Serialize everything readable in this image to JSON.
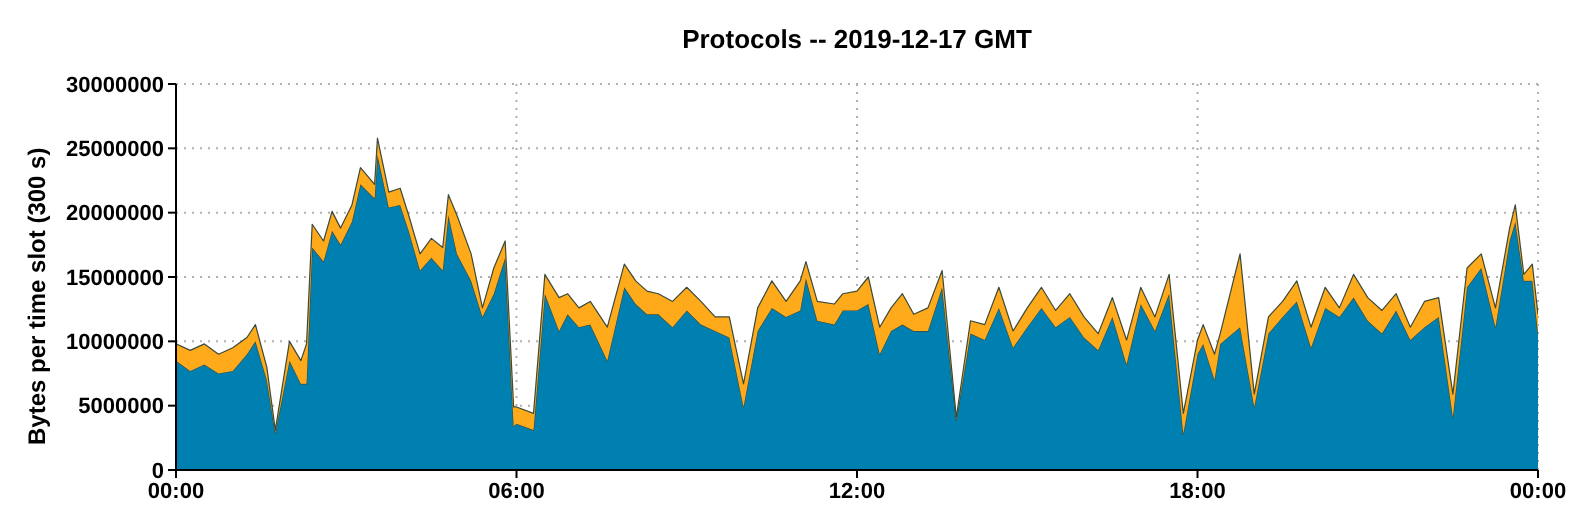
{
  "chart_data": {
    "type": "area",
    "title": "Protocols -- 2019-12-17 GMT",
    "ylabel": "Bytes per time slot (300 s)",
    "stacked": true,
    "grid": true,
    "legend": false,
    "x": [
      0,
      0.25,
      0.5,
      0.75,
      1,
      1.25,
      1.4,
      1.6,
      1.75,
      2,
      2.2,
      2.3,
      2.4,
      2.6,
      2.75,
      2.9,
      3.1,
      3.25,
      3.5,
      3.55,
      3.75,
      3.95,
      4.1,
      4.3,
      4.5,
      4.7,
      4.8,
      4.95,
      5.2,
      5.4,
      5.6,
      5.8,
      5.95,
      6,
      6.3,
      6.5,
      6.75,
      6.9,
      7.1,
      7.3,
      7.6,
      7.9,
      8.1,
      8.3,
      8.5,
      8.75,
      9,
      9.25,
      9.5,
      9.75,
      10,
      10.25,
      10.5,
      10.75,
      11,
      11.1,
      11.3,
      11.6,
      11.75,
      12,
      12.2,
      12.4,
      12.6,
      12.8,
      13,
      13.25,
      13.5,
      13.75,
      14,
      14.25,
      14.5,
      14.75,
      15,
      15.25,
      15.5,
      15.75,
      16,
      16.25,
      16.5,
      16.75,
      17,
      17.25,
      17.5,
      17.75,
      18,
      18.1,
      18.3,
      18.4,
      18.75,
      19,
      19.25,
      19.5,
      19.75,
      20,
      20.25,
      20.5,
      20.75,
      21,
      21.25,
      21.5,
      21.75,
      22,
      22.25,
      22.5,
      22.75,
      23,
      23.25,
      23.5,
      23.6,
      23.75,
      23.9,
      24
    ],
    "series": [
      {
        "color": "#0080b0",
        "values": [
          8500000,
          7700000,
          8200000,
          7500000,
          7700000,
          9000000,
          10000000,
          7000000,
          2900000,
          8500000,
          6700000,
          6700000,
          17300000,
          16200000,
          18600000,
          17500000,
          19300000,
          22200000,
          21100000,
          24500000,
          20400000,
          20600000,
          18600000,
          15500000,
          16500000,
          15500000,
          19800000,
          16800000,
          14700000,
          11900000,
          13700000,
          16500000,
          3400000,
          3600000,
          3100000,
          13700000,
          10800000,
          12100000,
          11100000,
          11300000,
          8500000,
          14200000,
          12900000,
          12100000,
          12100000,
          11100000,
          12400000,
          11300000,
          10800000,
          10300000,
          4900000,
          10800000,
          12600000,
          11900000,
          12400000,
          14900000,
          11600000,
          11300000,
          12400000,
          12400000,
          12900000,
          9000000,
          10800000,
          11300000,
          10800000,
          10800000,
          14200000,
          3900000,
          10600000,
          10100000,
          12600000,
          9500000,
          11100000,
          12600000,
          11100000,
          11900000,
          10300000,
          9300000,
          11900000,
          8200000,
          12900000,
          10800000,
          13700000,
          2800000,
          9000000,
          9800000,
          7000000,
          9800000,
          11100000,
          4900000,
          10600000,
          11900000,
          13100000,
          9500000,
          12600000,
          11900000,
          13400000,
          11600000,
          10600000,
          12400000,
          10100000,
          11100000,
          11900000,
          4100000,
          14200000,
          15700000,
          11100000,
          17800000,
          19300000,
          14700000,
          14700000,
          10600000
        ]
      },
      {
        "color": "#ffaa1a",
        "values": [
          1300000,
          1600000,
          1600000,
          1500000,
          1800000,
          1300000,
          1300000,
          1000000,
          200000,
          1500000,
          1800000,
          3100000,
          1800000,
          1600000,
          1500000,
          1300000,
          1300000,
          1300000,
          1100000,
          1300000,
          1200000,
          1300000,
          1200000,
          1300000,
          1500000,
          1800000,
          1600000,
          3000000,
          2100000,
          700000,
          2000000,
          1300000,
          1500000,
          1300000,
          1300000,
          1500000,
          2600000,
          1600000,
          1500000,
          1800000,
          2600000,
          1800000,
          1800000,
          1800000,
          1600000,
          2000000,
          1800000,
          1800000,
          1100000,
          1600000,
          1800000,
          1800000,
          2100000,
          1200000,
          2300000,
          1300000,
          1500000,
          1600000,
          1300000,
          1500000,
          2100000,
          2100000,
          1800000,
          2400000,
          1300000,
          1800000,
          1300000,
          200000,
          1000000,
          1200000,
          1600000,
          1300000,
          1500000,
          1600000,
          1300000,
          1800000,
          1600000,
          1300000,
          1500000,
          1900000,
          1300000,
          1100000,
          1500000,
          1600000,
          1100000,
          1500000,
          2000000,
          800000,
          5700000,
          1000000,
          1300000,
          1200000,
          1600000,
          1600000,
          1600000,
          700000,
          1800000,
          1800000,
          1800000,
          1300000,
          1000000,
          2000000,
          1500000,
          1800000,
          1500000,
          1100000,
          1500000,
          1000000,
          1300000,
          500000,
          1300000,
          1500000
        ]
      }
    ],
    "xlim": [
      0,
      24
    ],
    "xticks": [
      {
        "value": 0,
        "label": "00:00"
      },
      {
        "value": 6,
        "label": "06:00"
      },
      {
        "value": 12,
        "label": "12:00"
      },
      {
        "value": 18,
        "label": "18:00"
      },
      {
        "value": 24,
        "label": "00:00"
      }
    ],
    "ylim": [
      0,
      30000000
    ],
    "yticks": [
      0,
      5000000,
      10000000,
      15000000,
      20000000,
      25000000,
      30000000
    ]
  }
}
